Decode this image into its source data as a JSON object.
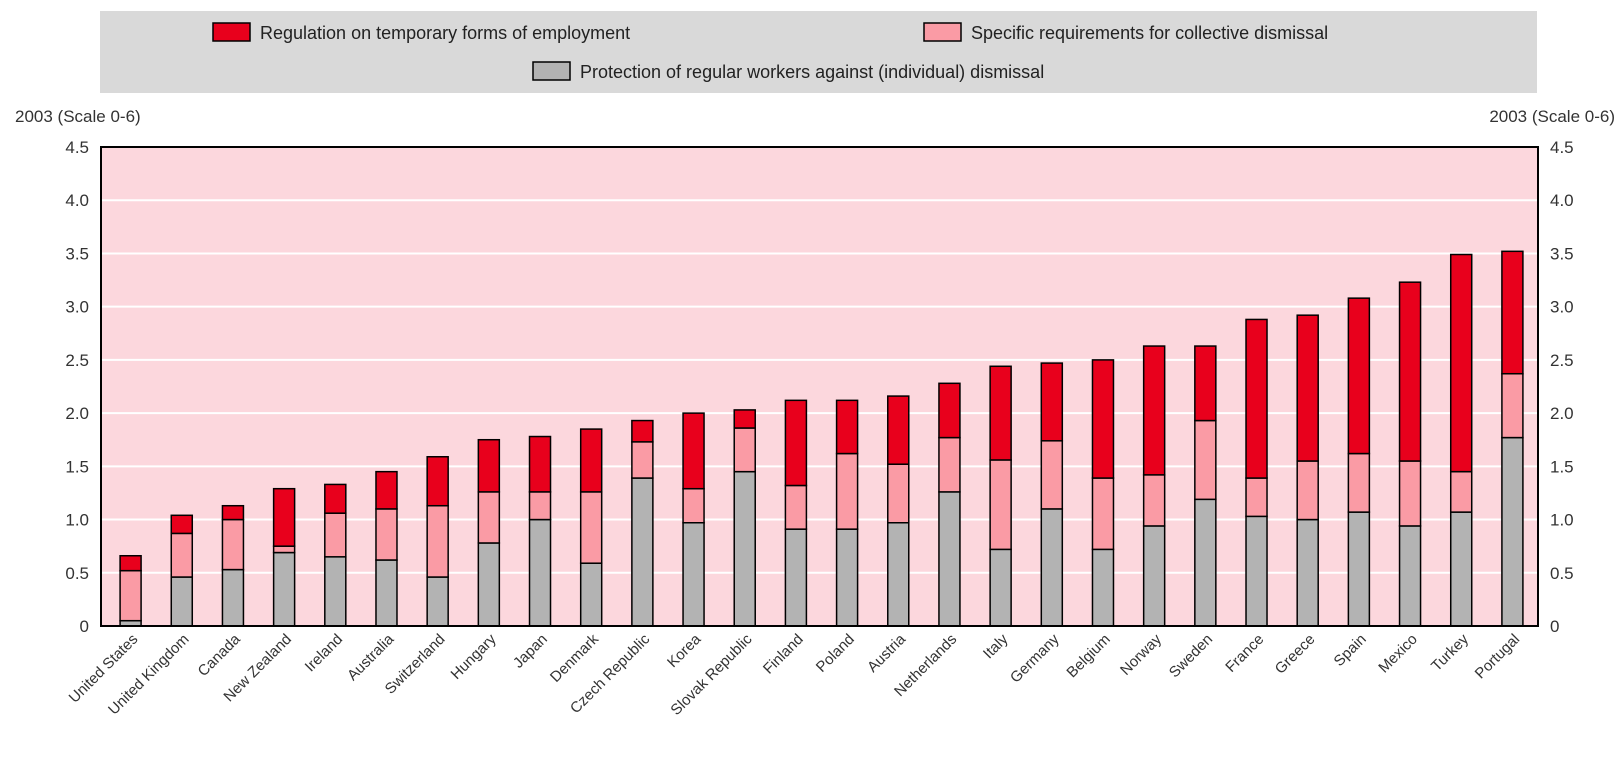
{
  "chart_data": {
    "type": "bar",
    "stacked": true,
    "title": "",
    "left_axis_label": "2003 (Scale 0-6)",
    "right_axis_label": "2003 (Scale 0-6)",
    "ylim": [
      0,
      4.5
    ],
    "yticks": [
      "0",
      "0.5",
      "1.0",
      "1.5",
      "2.0",
      "2.5",
      "3.0",
      "3.5",
      "4.0",
      "4.5"
    ],
    "grid": true,
    "legend_position": "top",
    "plot_background": "#fcd7dd",
    "legend_background": "#d9d9d9",
    "categories": [
      "United States",
      "United Kingdom",
      "Canada",
      "New Zealand",
      "Ireland",
      "Australia",
      "Switzerland",
      "Hungary",
      "Japan",
      "Denmark",
      "Czech Republic",
      "Korea",
      "Slovak Republic",
      "Finland",
      "Poland",
      "Austria",
      "Netherlands",
      "Italy",
      "Germany",
      "Belgium",
      "Norway",
      "Sweden",
      "France",
      "Greece",
      "Spain",
      "Mexico",
      "Turkey",
      "Portugal"
    ],
    "series": [
      {
        "name": "Protection of regular workers against (individual) dismissal",
        "color": "#b3b3b3",
        "values": [
          0.05,
          0.46,
          0.53,
          0.69,
          0.65,
          0.62,
          0.46,
          0.78,
          1.0,
          0.59,
          1.39,
          0.97,
          1.45,
          0.91,
          0.91,
          0.97,
          1.26,
          0.72,
          1.1,
          0.72,
          0.94,
          1.19,
          1.03,
          1.0,
          1.07,
          0.94,
          1.07,
          1.77
        ]
      },
      {
        "name": "Specific requirements for collective dismissal",
        "color": "#fa9ba5",
        "values": [
          0.47,
          0.41,
          0.47,
          0.06,
          0.41,
          0.48,
          0.67,
          0.48,
          0.26,
          0.67,
          0.34,
          0.32,
          0.41,
          0.41,
          0.71,
          0.55,
          0.51,
          0.84,
          0.64,
          0.67,
          0.48,
          0.74,
          0.36,
          0.55,
          0.55,
          0.61,
          0.38,
          0.6
        ]
      },
      {
        "name": "Regulation on temporary forms of employment",
        "color": "#e8001c",
        "values": [
          0.14,
          0.17,
          0.13,
          0.54,
          0.27,
          0.35,
          0.46,
          0.49,
          0.52,
          0.59,
          0.2,
          0.71,
          0.17,
          0.8,
          0.5,
          0.64,
          0.51,
          0.88,
          0.73,
          1.11,
          1.21,
          0.7,
          1.49,
          1.37,
          1.46,
          1.68,
          2.04,
          1.15
        ]
      }
    ]
  }
}
